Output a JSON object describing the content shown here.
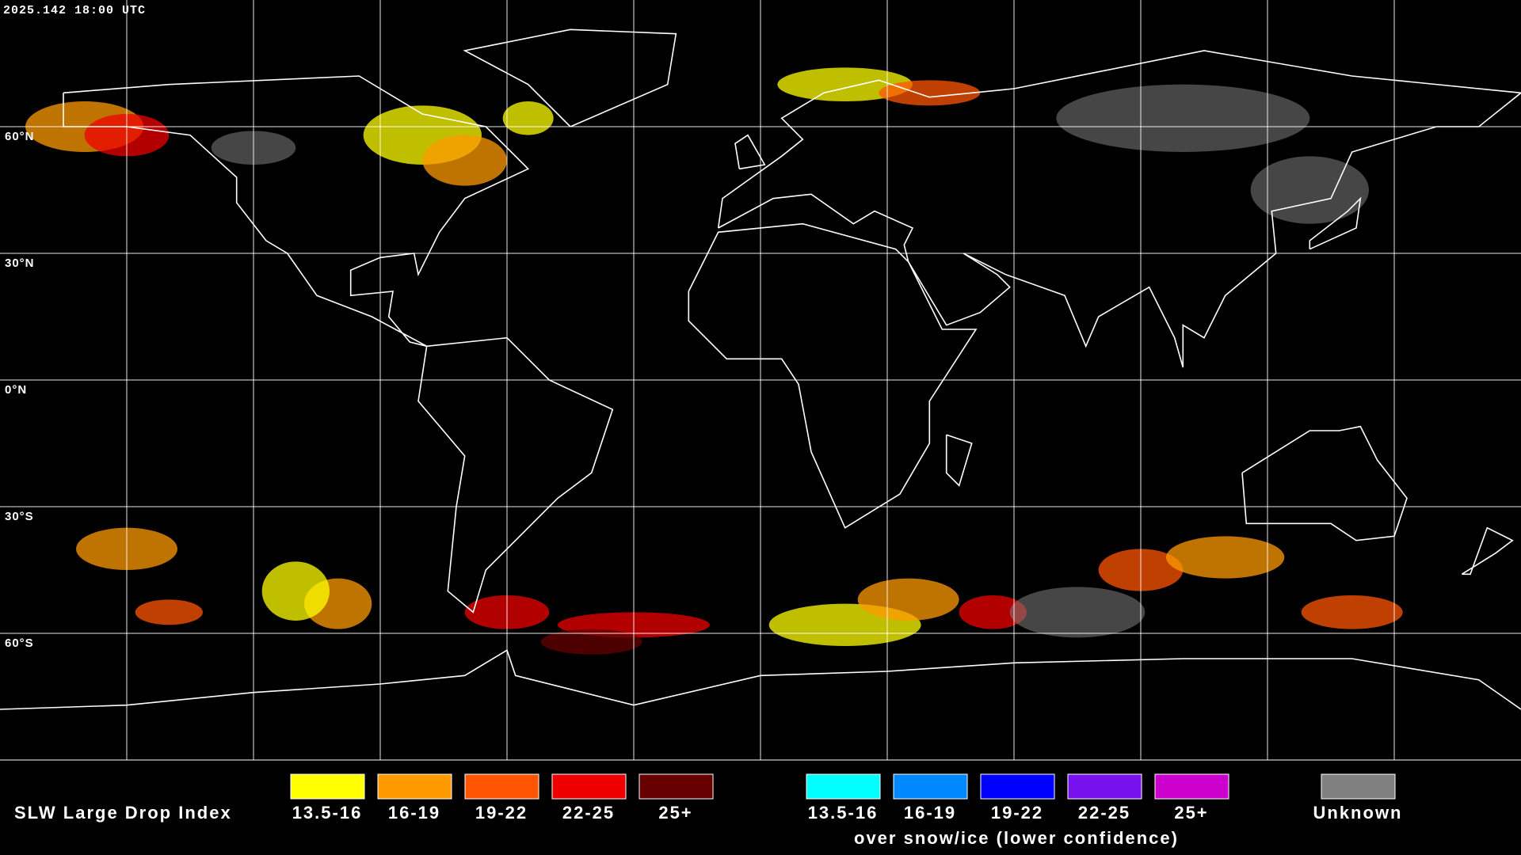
{
  "header": {
    "timestamp": "2025.142 18:00 UTC"
  },
  "grid": {
    "lat_labels": [
      "60°N",
      "30°N",
      "0°N",
      "30°S",
      "60°S"
    ]
  },
  "legend": {
    "title": "SLW Large Drop Index",
    "items": [
      {
        "label": "13.5-16",
        "color": "#ffff00"
      },
      {
        "label": "16-19",
        "color": "#ff9900"
      },
      {
        "label": "19-22",
        "color": "#ff5500"
      },
      {
        "label": "22-25",
        "color": "#ee0000"
      },
      {
        "label": "25+",
        "color": "#660000"
      }
    ],
    "snow_items": [
      {
        "label": "13.5-16",
        "color": "#00ffff"
      },
      {
        "label": "16-19",
        "color": "#0088ff"
      },
      {
        "label": "19-22",
        "color": "#0000ff"
      },
      {
        "label": "22-25",
        "color": "#7711ee"
      },
      {
        "label": "25+",
        "color": "#cc00cc"
      }
    ],
    "snow_note": "over snow/ice (lower confidence)",
    "unknown": {
      "label": "Unknown",
      "color": "#808080"
    }
  }
}
